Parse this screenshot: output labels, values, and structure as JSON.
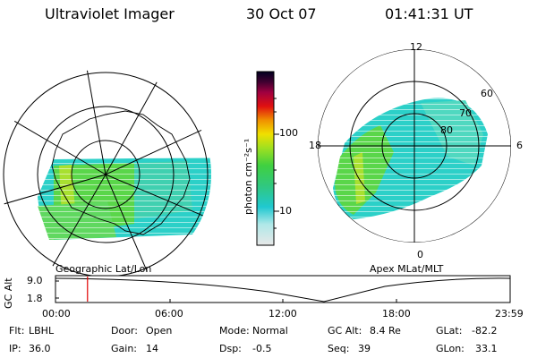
{
  "header": {
    "instrument": "Ultraviolet Imager",
    "date": "30 Oct 07",
    "time": "01:41:31 UT"
  },
  "left_map": {
    "caption": "Geographic Lat/Lon"
  },
  "right_map": {
    "caption": "Apex MLat/MLT",
    "mlt_labels": [
      "12",
      "18",
      "6",
      "0"
    ],
    "mlat_labels": [
      "60",
      "70",
      "80"
    ]
  },
  "colorbar": {
    "unit_label": "photon cm⁻²s⁻¹",
    "ticks": [
      "100",
      "10"
    ],
    "scale": "log",
    "colors": [
      "#e0e0e0",
      "#20c8d0",
      "#40d040",
      "#a0e020",
      "#f0e000",
      "#f09000",
      "#e01010",
      "#a00040",
      "#300030",
      "#000020"
    ]
  },
  "altitude_plot": {
    "ylabel": "GC Alt",
    "y_ticks": [
      "9.0",
      "1.8"
    ],
    "x_ticks": [
      "00:00",
      "06:00",
      "12:00",
      "18:00",
      "23:59"
    ],
    "marker_time_hours": 1.69,
    "marker_color": "#e00000"
  },
  "info": {
    "row1": [
      {
        "key": "Flt:",
        "val": "LBHL"
      },
      {
        "key": "Door:",
        "val": "Open"
      },
      {
        "key": "Mode:",
        "val": "Normal"
      },
      {
        "key": "GC Alt:",
        "val": "8.4 Re"
      },
      {
        "key": "GLat:",
        "val": "-82.2"
      }
    ],
    "row2": [
      {
        "key": "IP:",
        "val": "36.0"
      },
      {
        "key": "Gain:",
        "val": "14"
      },
      {
        "key": "Dsp:",
        "val": "-0.5"
      },
      {
        "key": "Seq:",
        "val": "39"
      },
      {
        "key": "GLon:",
        "val": "33.1"
      }
    ]
  }
}
